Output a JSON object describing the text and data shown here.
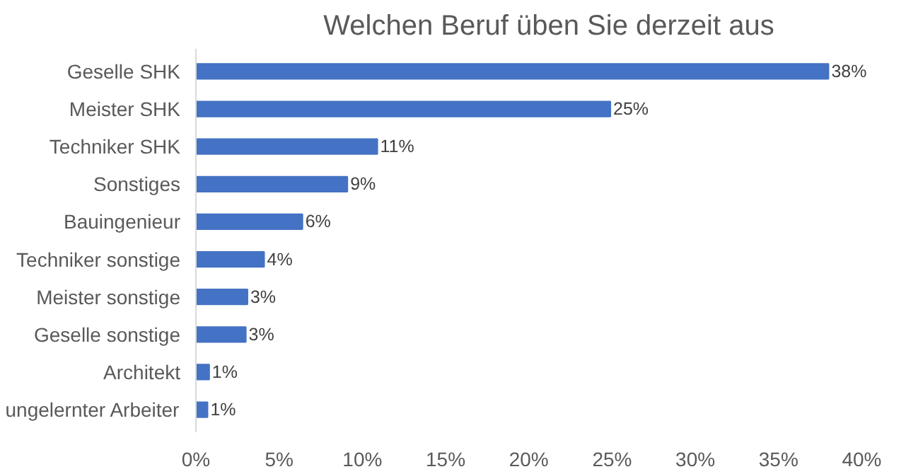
{
  "chart_data": {
    "type": "bar",
    "orientation": "horizontal",
    "title": "Welchen Beruf üben Sie derzeit aus",
    "categories": [
      "Geselle SHK",
      "Meister SHK",
      "Techniker SHK",
      "Sonstiges",
      "Bauingenieur",
      "Techniker sonstige",
      "Meister sonstige",
      "Geselle sonstige",
      "Architekt",
      "ungelernter Arbeiter"
    ],
    "values": [
      38.0,
      24.9,
      10.9,
      9.1,
      6.4,
      4.1,
      3.1,
      3.0,
      0.8,
      0.7
    ],
    "value_labels": [
      "38%",
      "25%",
      "11%",
      "9%",
      "6%",
      "4%",
      "3%",
      "3%",
      "1%",
      "1%"
    ],
    "color": "#4472c4",
    "xlim": [
      0,
      40
    ],
    "xticks": [
      {
        "value": 0,
        "label": "0%"
      },
      {
        "value": 5,
        "label": "5%"
      },
      {
        "value": 10,
        "label": "10%"
      },
      {
        "value": 15,
        "label": "15%"
      },
      {
        "value": 20,
        "label": "20%"
      },
      {
        "value": 25,
        "label": "25%"
      },
      {
        "value": 30,
        "label": "30%"
      },
      {
        "value": 35,
        "label": "35%"
      },
      {
        "value": 40,
        "label": "40%"
      }
    ],
    "grid": false
  }
}
